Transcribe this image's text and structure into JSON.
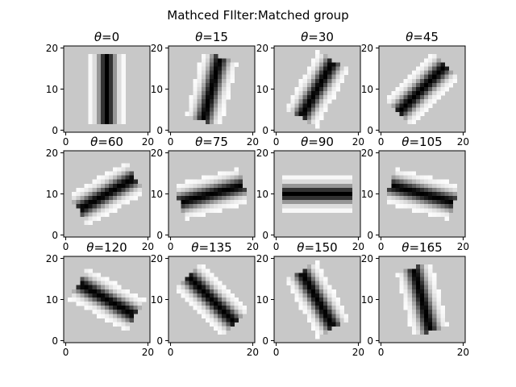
{
  "title": "Mathced FIlter:Matched group",
  "chart_data": {
    "type": "heatmap",
    "colormap": "gray",
    "background_color": "#c8c8c8",
    "grid_size": 21,
    "x_ticks": [
      0,
      20
    ],
    "y_ticks": [
      0,
      10,
      20
    ],
    "xlim": [
      -0.5,
      20.5
    ],
    "ylim": [
      20.5,
      -0.5
    ],
    "panels": [
      {
        "angle": 0,
        "title_prefix": "θ",
        "title_value": "=0"
      },
      {
        "angle": 15,
        "title_prefix": "θ",
        "title_value": "=15"
      },
      {
        "angle": 30,
        "title_prefix": "θ",
        "title_value": "=30"
      },
      {
        "angle": 45,
        "title_prefix": "θ",
        "title_value": "=45"
      },
      {
        "angle": 60,
        "title_prefix": "θ",
        "title_value": "=60"
      },
      {
        "angle": 75,
        "title_prefix": "θ",
        "title_value": "=75"
      },
      {
        "angle": 90,
        "title_prefix": "θ",
        "title_value": "=90"
      },
      {
        "angle": 105,
        "title_prefix": "θ",
        "title_value": "=105"
      },
      {
        "angle": 120,
        "title_prefix": "θ",
        "title_value": "=120"
      },
      {
        "angle": 135,
        "title_prefix": "θ",
        "title_value": "=135"
      },
      {
        "angle": 150,
        "title_prefix": "θ",
        "title_value": "=150"
      },
      {
        "angle": 165,
        "title_prefix": "θ",
        "title_value": "=165"
      }
    ]
  }
}
